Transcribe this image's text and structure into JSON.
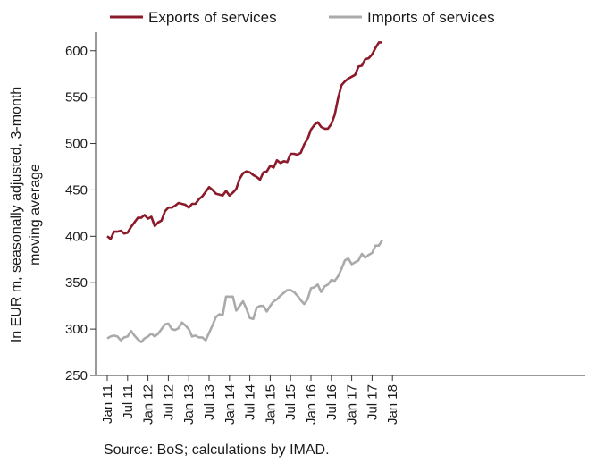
{
  "chart_data": {
    "type": "line",
    "ylabel_line1": "In EUR m, seasonally adjusted, 3-month",
    "ylabel_line2": "moving average",
    "source": "Source: BoS; calculations by IMAD.",
    "ylim": [
      250,
      620
    ],
    "yticks": [
      250,
      300,
      350,
      400,
      450,
      500,
      550,
      600
    ],
    "xticks": [
      "Jan 11",
      "Jul 11",
      "Jan 12",
      "Jul 12",
      "Jan 13",
      "Jul 13",
      "Jan 14",
      "Jul 14",
      "Jan 15",
      "Jul 15",
      "Jan 16",
      "Jul 16",
      "Jan 17",
      "Jul 17",
      "Jan 18"
    ],
    "grid": false,
    "legend_position": "top",
    "series": [
      {
        "name": "Exports of services",
        "color": "#8b1a2b",
        "values": [
          400,
          397,
          405,
          405,
          406,
          403,
          404,
          410,
          415,
          420,
          420,
          423,
          419,
          421,
          411,
          415,
          417,
          427,
          431,
          431,
          433,
          436,
          435,
          434,
          431,
          435,
          435,
          440,
          443,
          448,
          453,
          450,
          446,
          445,
          444,
          449,
          444,
          447,
          451,
          462,
          468,
          470,
          469,
          466,
          464,
          461,
          469,
          470,
          476,
          474,
          482,
          479,
          481,
          480,
          489,
          489,
          488,
          490,
          499,
          505,
          515,
          520,
          523,
          518,
          516,
          516,
          521,
          531,
          549,
          563,
          567,
          570,
          572,
          574,
          583,
          584,
          591,
          592,
          596,
          603,
          609,
          609
        ]
      },
      {
        "name": "Imports of services",
        "color": "#aaaaaa",
        "values": [
          290,
          292,
          293,
          292,
          288,
          291,
          292,
          298,
          293,
          289,
          286,
          290,
          292,
          295,
          292,
          295,
          300,
          305,
          306,
          300,
          299,
          301,
          307,
          304,
          300,
          292,
          293,
          291,
          291,
          288,
          296,
          304,
          313,
          316,
          315,
          335,
          335,
          335,
          320,
          325,
          330,
          322,
          312,
          311,
          323,
          325,
          325,
          319,
          325,
          330,
          332,
          336,
          339,
          342,
          342,
          340,
          336,
          331,
          327,
          332,
          344,
          345,
          348,
          340,
          346,
          348,
          353,
          352,
          357,
          365,
          374,
          376,
          370,
          372,
          374,
          381,
          377,
          380,
          382,
          390,
          390,
          396
        ]
      }
    ]
  }
}
